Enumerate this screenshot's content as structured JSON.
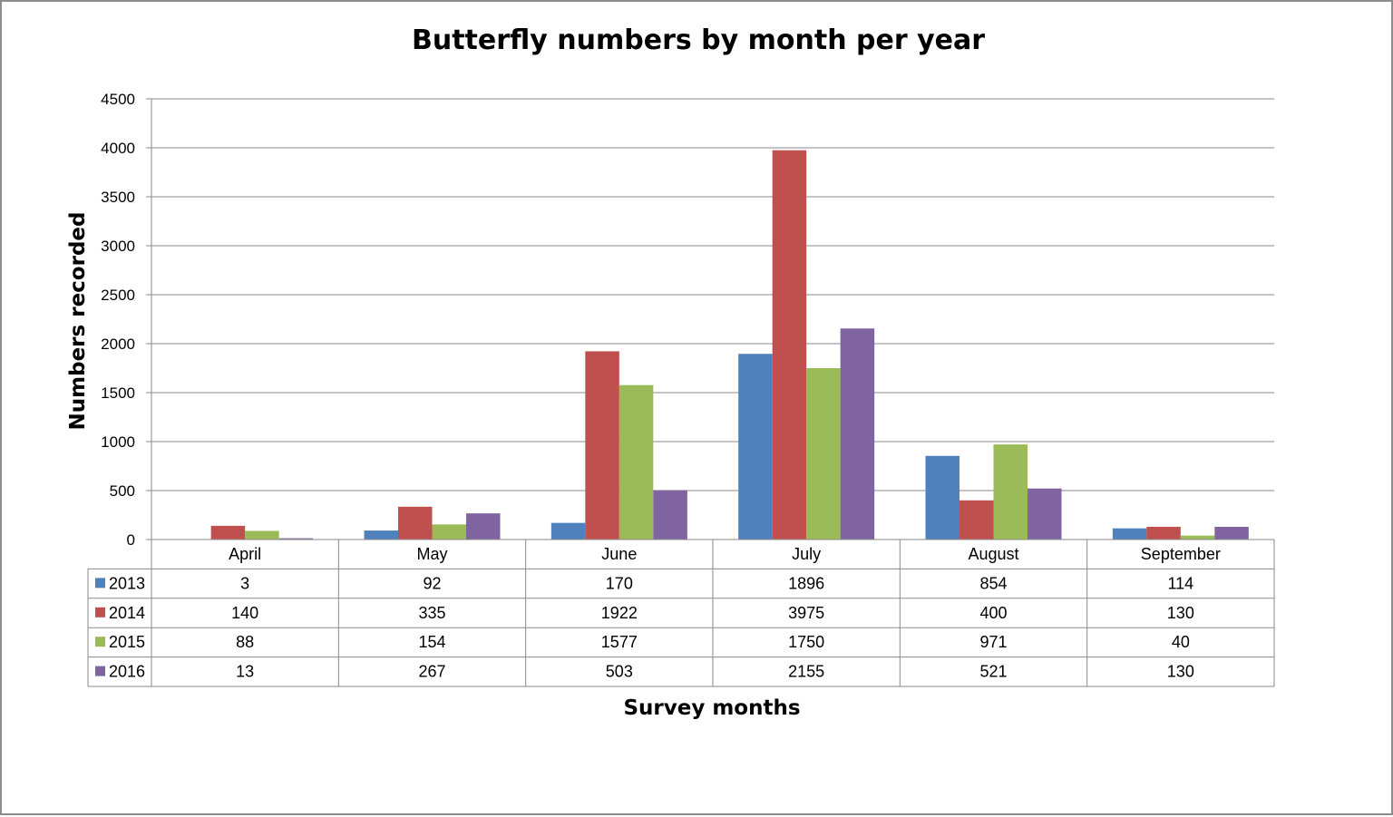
{
  "chart_data": {
    "type": "bar",
    "title": "Butterfly numbers by month per year",
    "xlabel": "Survey months",
    "ylabel": "Numbers recorded",
    "ylim": [
      0,
      4500
    ],
    "yticks": [
      0,
      500,
      1000,
      1500,
      2000,
      2500,
      3000,
      3500,
      4000,
      4500
    ],
    "grid": true,
    "legend": "data-table",
    "categories": [
      "April",
      "May",
      "June",
      "July",
      "August",
      "September"
    ],
    "series": [
      {
        "name": "2013",
        "color": "#4F81BD",
        "values": [
          3,
          92,
          170,
          1896,
          854,
          114
        ]
      },
      {
        "name": "2014",
        "color": "#C0504D",
        "values": [
          140,
          335,
          1922,
          3975,
          400,
          130
        ]
      },
      {
        "name": "2015",
        "color": "#9BBB59",
        "values": [
          88,
          154,
          1577,
          1750,
          971,
          40
        ]
      },
      {
        "name": "2016",
        "color": "#8064A2",
        "values": [
          13,
          267,
          503,
          2155,
          521,
          130
        ]
      }
    ]
  }
}
